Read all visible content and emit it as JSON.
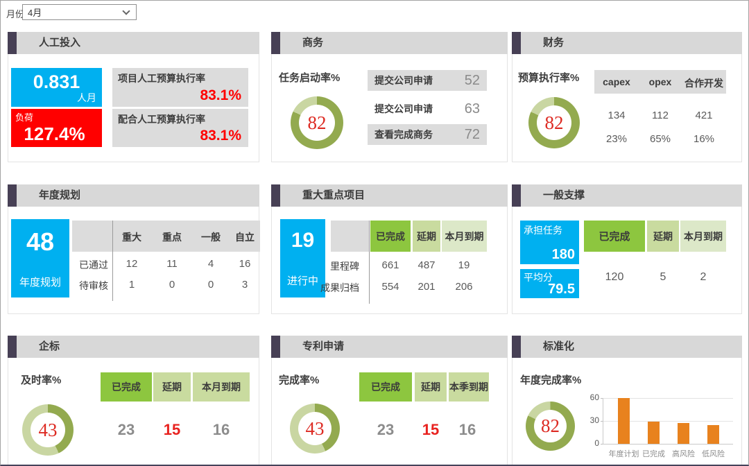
{
  "filter": {
    "label": "月份",
    "required_mark": "*",
    "value": "4月"
  },
  "colors": {
    "accent": "#474055",
    "titlebar": "#d8d8d8",
    "blue": "#00b0f0",
    "red": "#ff0000",
    "donut_dark": "#93aa4f",
    "donut_light": "#c9d6a2",
    "donut_number": "#dd2b23",
    "green": "#8dc63f",
    "green_mid": "#c9db9f",
    "green_soft": "#dce8c8",
    "orange": "#e8821e"
  },
  "panels": {
    "labor": {
      "title": "人工投入",
      "effort": {
        "value": "0.831",
        "unit": "人月"
      },
      "load": {
        "label": "负荷",
        "value": "127.4%"
      },
      "stats": [
        {
          "label": "项目人工预算执行率",
          "value": "83.1%"
        },
        {
          "label": "配合人工预算执行率",
          "value": "83.1%"
        }
      ]
    },
    "business": {
      "title": "商务",
      "metric": "任务启动率%",
      "donut": 82,
      "rows": [
        {
          "label": "提交公司申请",
          "value": "52"
        },
        {
          "label": "提交公司申请",
          "value": "63"
        },
        {
          "label": "查看完成商务",
          "value": "72"
        }
      ]
    },
    "finance": {
      "title": "财务",
      "metric": "预算执行率%",
      "donut": 82,
      "headers": [
        "capex",
        "opex",
        "合作开发"
      ],
      "rows": [
        [
          "134",
          "112",
          "421"
        ],
        [
          "23%",
          "65%",
          "16%"
        ]
      ]
    },
    "annual_plan": {
      "title": "年度规划",
      "card": {
        "value": "48",
        "label": "年度规划"
      },
      "headers": [
        "重大",
        "重点",
        "一般",
        "自立"
      ],
      "rows": [
        {
          "label": "已通过",
          "values": [
            "12",
            "11",
            "4",
            "16"
          ]
        },
        {
          "label": "待审核",
          "values": [
            "1",
            "0",
            "0",
            "3"
          ]
        }
      ]
    },
    "key_projects": {
      "title": "重大重点项目",
      "card": {
        "value": "19",
        "label": "进行中"
      },
      "headers": [
        "已完成",
        "延期",
        "本月到期"
      ],
      "rows": [
        {
          "label": "里程碑",
          "values": [
            "661",
            "487",
            "19"
          ]
        },
        {
          "label": "成果归档",
          "values": [
            "554",
            "201",
            "206"
          ]
        }
      ]
    },
    "general_support": {
      "title": "一般支撑",
      "cards": [
        {
          "label": "承担任务",
          "value": "180"
        },
        {
          "label": "平均分",
          "value": "79.5"
        }
      ],
      "headers": [
        "已完成",
        "延期",
        "本月到期"
      ],
      "values": [
        "120",
        "5",
        "2"
      ]
    },
    "enterprise_std": {
      "title": "企标",
      "metric": "及时率%",
      "donut": 43,
      "headers": [
        "已完成",
        "延期",
        "本月到期"
      ],
      "values": [
        "23",
        "15",
        "16"
      ]
    },
    "patents": {
      "title": "专利申请",
      "metric": "完成率%",
      "donut": 43,
      "headers": [
        "已完成",
        "延期",
        "本季到期"
      ],
      "values": [
        "23",
        "15",
        "16"
      ]
    },
    "standardization": {
      "title": "标准化",
      "metric": "年度完成率%",
      "donut": 82
    }
  },
  "chart_data": {
    "type": "bar",
    "title": "",
    "categories": [
      "年度计划",
      "已完成",
      "高风险",
      "低风险"
    ],
    "values": [
      60,
      29,
      27,
      25
    ],
    "xlabel": "",
    "ylabel": "",
    "yticks": [
      0,
      30,
      60
    ],
    "ylim": [
      0,
      60
    ],
    "bar_color": "#e8821e",
    "grid": true,
    "legend": false
  }
}
